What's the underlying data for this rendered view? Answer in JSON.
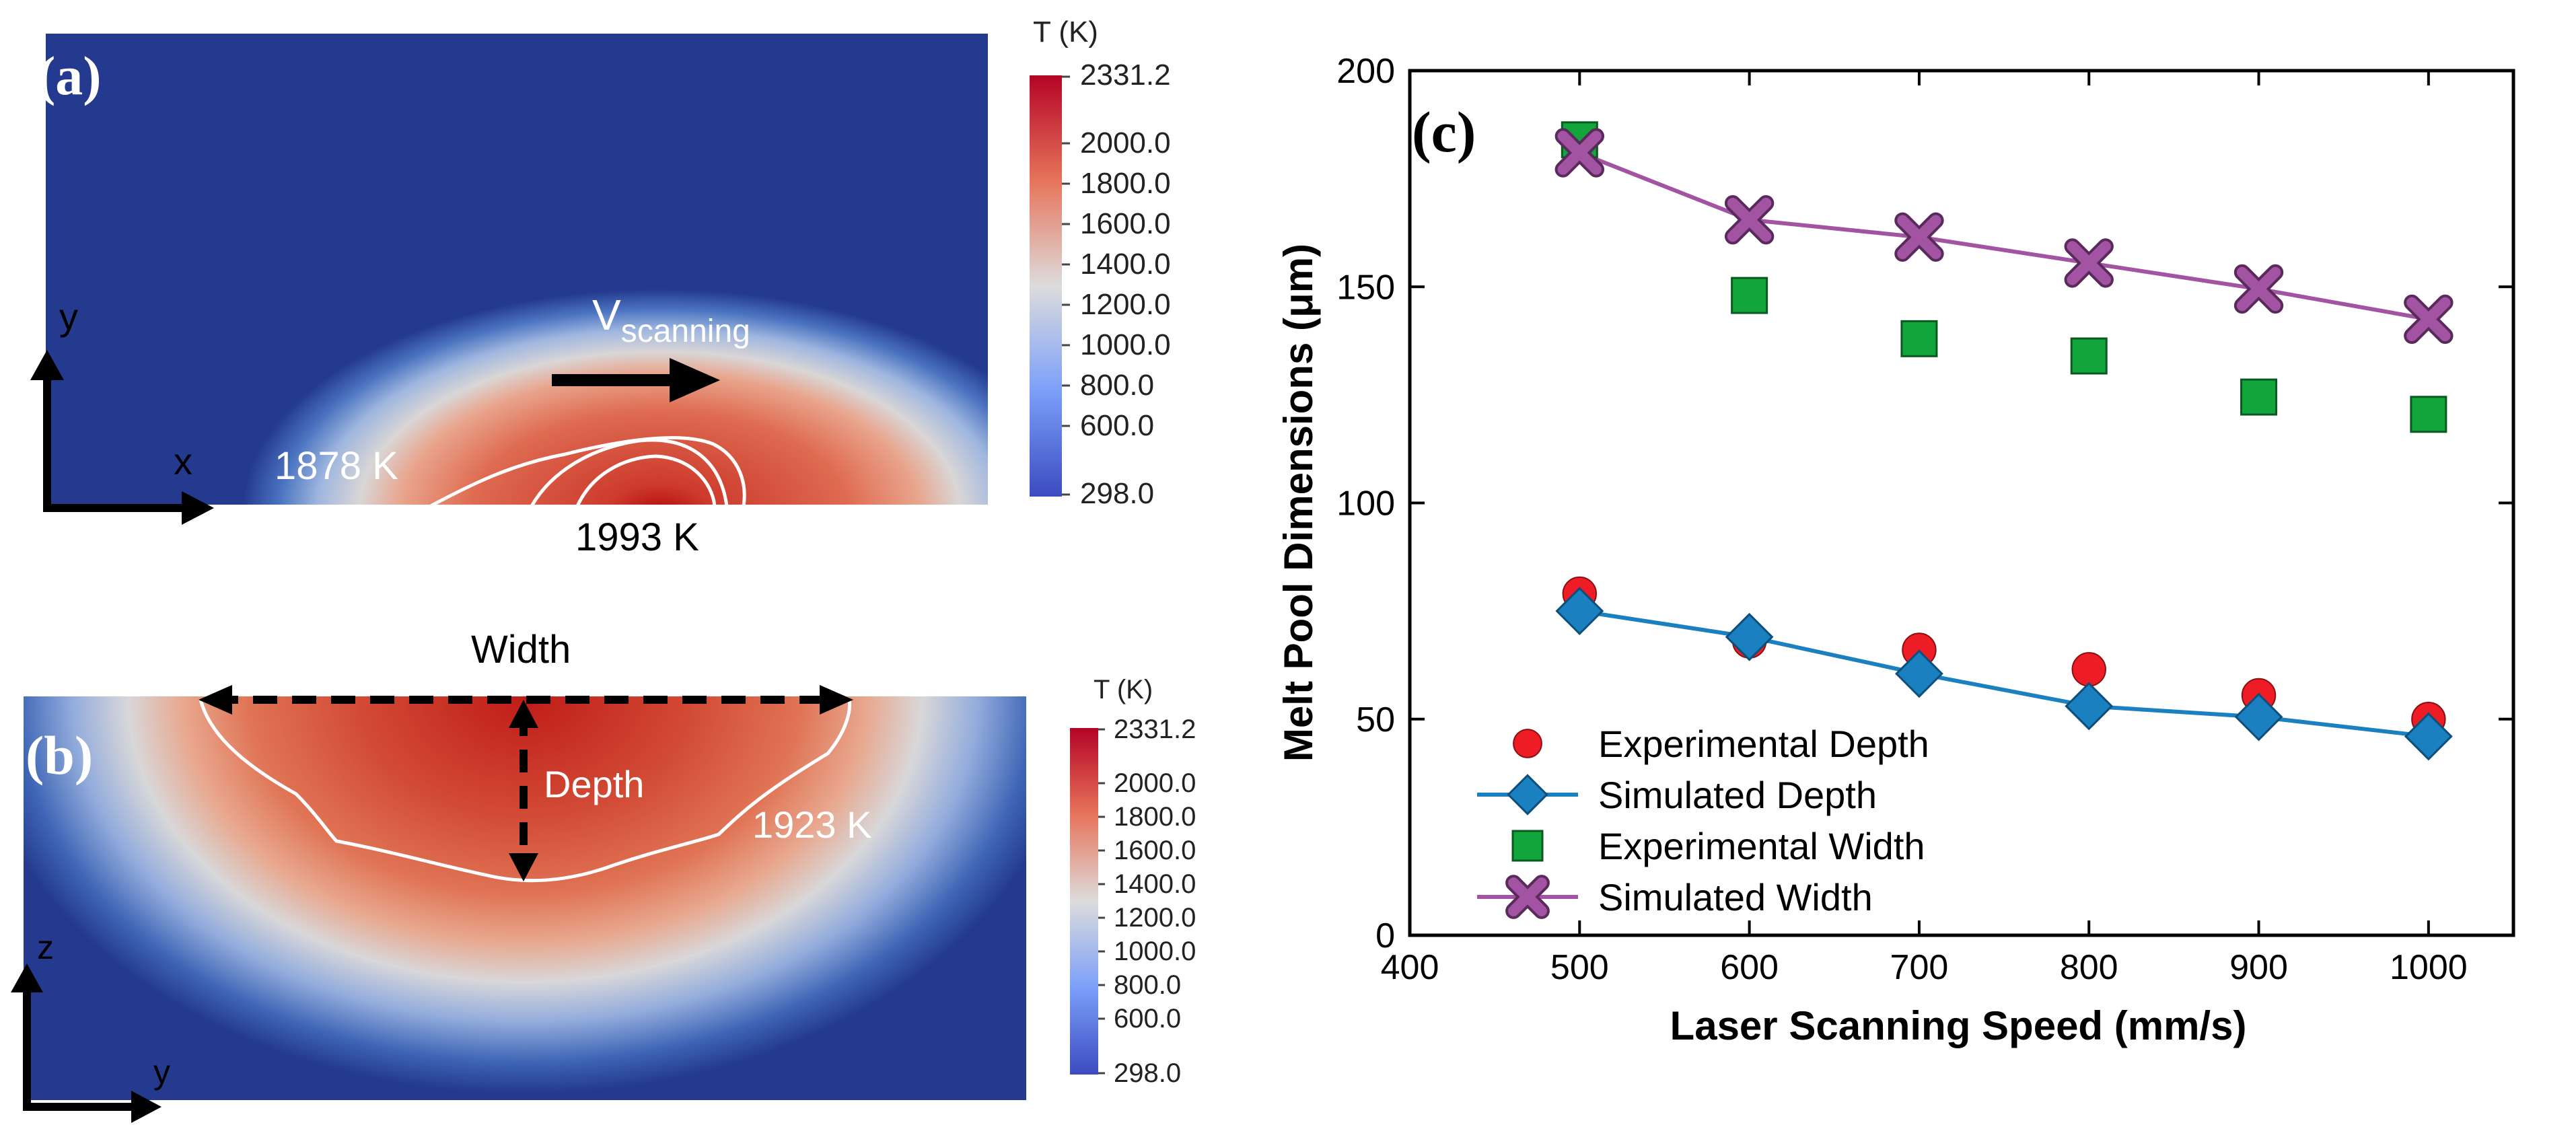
{
  "panel_a": {
    "label": "(a)",
    "colorbar": {
      "title": "T (K)",
      "max": "2331.2",
      "ticks": [
        "2000.0",
        "1800.0",
        "1600.0",
        "1400.0",
        "1200.0",
        "1000.0",
        "800.0",
        "600.0"
      ],
      "min": "298.0"
    },
    "axis_y": "y",
    "axis_x": "x",
    "velocity_label": "V",
    "velocity_subscript": "scanning",
    "iso_left": "1878 K",
    "iso_peak": "1993 K"
  },
  "panel_b": {
    "label": "(b)",
    "colorbar": {
      "title": "T (K)",
      "max": "2331.2",
      "ticks": [
        "2000.0",
        "1800.0",
        "1600.0",
        "1400.0",
        "1200.0",
        "1000.0",
        "800.0",
        "600.0"
      ],
      "min": "298.0"
    },
    "width_label": "Width",
    "depth_label": "Depth",
    "iso_label": "1923 K",
    "axis_z": "z",
    "axis_y": "y"
  },
  "chart_data": {
    "type": "scatter",
    "panel_label": "(c)",
    "xlabel": "Laser Scanning Speed (mm/s)",
    "ylabel": "Melt Pool Dimensions (μm)",
    "xlim": [
      400,
      1050
    ],
    "ylim": [
      0,
      200
    ],
    "xticks": [
      400,
      500,
      600,
      700,
      800,
      900,
      1000
    ],
    "yticks": [
      0,
      50,
      100,
      150,
      200
    ],
    "x": [
      500,
      600,
      700,
      800,
      900,
      1000
    ],
    "series": [
      {
        "name": "Experimental Depth",
        "marker": "circle",
        "color": "#ee1c24",
        "line": false,
        "values": [
          79,
          68,
          66,
          61.5,
          55.5,
          50
        ]
      },
      {
        "name": "Simulated Depth",
        "marker": "diamond",
        "color": "#1a80bf",
        "line": true,
        "values": [
          75,
          69,
          60.5,
          53,
          50.5,
          46
        ]
      },
      {
        "name": "Experimental Width",
        "marker": "square",
        "color": "#12a53c",
        "line": false,
        "values": [
          184,
          148,
          138,
          134,
          124.5,
          120.5
        ]
      },
      {
        "name": "Simulated Width",
        "marker": "x",
        "color": "#a254a3",
        "line": true,
        "values": [
          181,
          165.5,
          161.5,
          155.5,
          149.5,
          142.5
        ]
      }
    ]
  },
  "colors": {
    "cold": "#243a8f",
    "hot": "#b50d0d"
  }
}
